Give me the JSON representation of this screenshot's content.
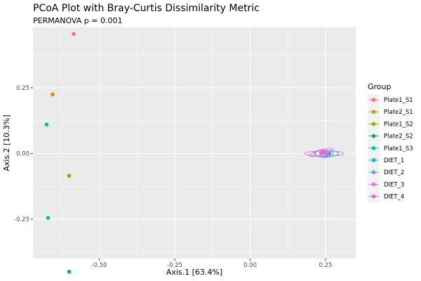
{
  "chart_data": {
    "type": "scatter",
    "title": "PCoA Plot with Bray-Curtis Dissimilarity Metric",
    "subtitle": "PERMANOVA p = 0.001",
    "xlabel": "Axis.1   [63.4%]",
    "ylabel": "Axis.2   [10.3%]",
    "xlim": [
      -0.72,
      0.35
    ],
    "ylim": [
      -0.4,
      0.48
    ],
    "x_ticks": [
      -0.5,
      -0.25,
      0.0,
      0.25
    ],
    "x_tick_labels": [
      "-0.50",
      "-0.25",
      "0.00",
      "0.25"
    ],
    "y_ticks": [
      -0.25,
      0.0,
      0.25
    ],
    "y_tick_labels": [
      "-0.25",
      "0.00",
      "0.25"
    ],
    "grid": true,
    "legend": {
      "title": "Group",
      "placement": "right",
      "entries": [
        {
          "name": "Plate1_S1",
          "color": "#F8766D"
        },
        {
          "name": "Plate2_S1",
          "color": "#D39200"
        },
        {
          "name": "Plate1_S2",
          "color": "#93AA00"
        },
        {
          "name": "Plate2_S2",
          "color": "#00BA38"
        },
        {
          "name": "Plate1_S3",
          "color": "#00C19F"
        },
        {
          "name": "DIET_1",
          "color": "#00B9E3"
        },
        {
          "name": "DIET_2",
          "color": "#619CFF"
        },
        {
          "name": "DIET_3",
          "color": "#DB72FB"
        },
        {
          "name": "DIET_4",
          "color": "#FF61C3"
        }
      ]
    },
    "series": [
      {
        "name": "Plate1_S1",
        "points": [
          {
            "x": -0.585,
            "y": 0.455
          }
        ]
      },
      {
        "name": "Plate2_S1",
        "points": [
          {
            "x": -0.655,
            "y": 0.225
          }
        ]
      },
      {
        "name": "Plate1_S2",
        "points": [
          {
            "x": -0.6,
            "y": -0.085
          }
        ]
      },
      {
        "name": "Plate2_S2",
        "points": [
          {
            "x": -0.6,
            "y": -0.45
          }
        ]
      },
      {
        "name": "Plate1_S3",
        "points": [
          {
            "x": -0.675,
            "y": 0.11
          },
          {
            "x": -0.67,
            "y": -0.245
          }
        ]
      },
      {
        "name": "DIET_1",
        "points": [
          {
            "x": 0.247,
            "y": 0.003
          },
          {
            "x": 0.262,
            "y": -0.001
          }
        ]
      },
      {
        "name": "DIET_2",
        "points": [
          {
            "x": 0.238,
            "y": 0.0
          },
          {
            "x": 0.252,
            "y": -0.003
          }
        ]
      },
      {
        "name": "DIET_3",
        "points": [
          {
            "x": 0.242,
            "y": 0.002
          },
          {
            "x": 0.255,
            "y": 0.001
          }
        ]
      },
      {
        "name": "DIET_4",
        "points": [
          {
            "x": 0.245,
            "y": 0.006
          },
          {
            "x": 0.235,
            "y": 0.001
          }
        ]
      }
    ],
    "ellipses": [
      {
        "name": "DIET_1",
        "cx": 0.252,
        "cy": 0.0,
        "rx": 0.04,
        "ry": 0.012,
        "angle": 0
      },
      {
        "name": "DIET_2",
        "cx": 0.245,
        "cy": -0.001,
        "rx": 0.03,
        "ry": 0.014,
        "angle": 0
      },
      {
        "name": "DIET_3",
        "cx": 0.245,
        "cy": 0.0,
        "rx": 0.065,
        "ry": 0.01,
        "angle": 0
      },
      {
        "name": "DIET_4",
        "cx": 0.235,
        "cy": 0.004,
        "rx": 0.04,
        "ry": 0.01,
        "angle": -15
      }
    ]
  }
}
